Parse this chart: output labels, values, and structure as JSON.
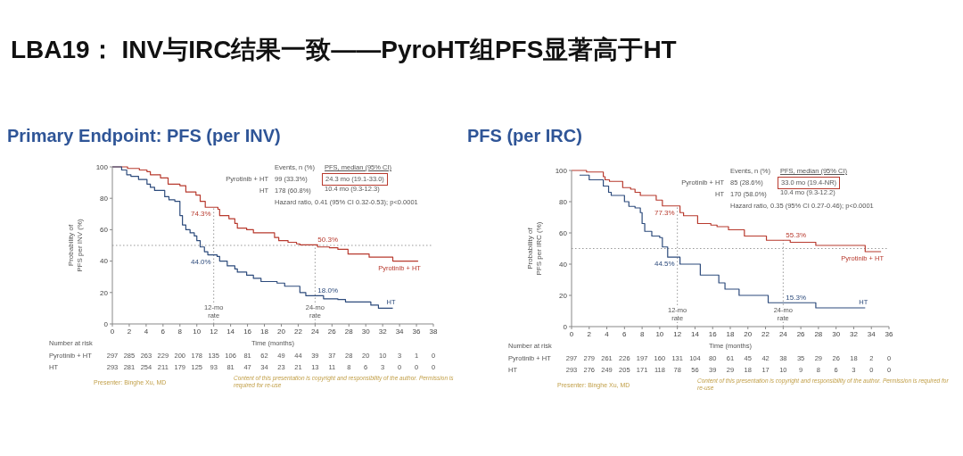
{
  "chart_data": [
    {
      "type": "other",
      "title": "LBA19： INV与IRC结果一致——PyroHT组PFS显著高于HT"
    },
    {
      "type": "step",
      "title": "Primary Endpoint: PFS (per INV)",
      "xlabel": "Time (months)",
      "ylabel": "Probability of\nPFS per INV (%)",
      "xlim": [
        0,
        38
      ],
      "xticks": [
        0,
        2,
        4,
        6,
        8,
        10,
        12,
        14,
        16,
        18,
        20,
        22,
        24,
        26,
        28,
        30,
        32,
        34,
        36,
        38
      ],
      "ylim": [
        0,
        100
      ],
      "yticks": [
        0,
        20,
        40,
        60,
        80,
        100
      ],
      "series": [
        {
          "name": "Pyrotinib + HT",
          "color": "#b83a2e",
          "x": [
            0,
            1.8,
            3.2,
            4.1,
            4.5,
            5.7,
            6.6,
            8.0,
            8.7,
            9.9,
            10.4,
            11.0,
            12.5,
            12.7,
            13.8,
            14.5,
            14.8,
            15.9,
            16.7,
            19.2,
            19.7,
            20.8,
            21.8,
            22.2,
            24.3,
            25.7,
            26.7,
            27.9,
            30.4,
            33.2,
            36.2
          ],
          "values": [
            100,
            99,
            98,
            97,
            95,
            93,
            89,
            88,
            84,
            82,
            78,
            74.3,
            73,
            69,
            67,
            64,
            61,
            60,
            58,
            55,
            53,
            52,
            51,
            50.3,
            49,
            48.5,
            47.5,
            44.5,
            42.5,
            40,
            40
          ]
        },
        {
          "name": "HT",
          "color": "#2d4b7c",
          "x": [
            0,
            1.1,
            1.7,
            2.2,
            3.1,
            4.1,
            4.5,
            5.0,
            6.2,
            6.7,
            7.4,
            8.0,
            8.3,
            8.7,
            9.2,
            9.7,
            10.0,
            10.4,
            10.9,
            11.3,
            12.4,
            12.7,
            13.6,
            14.5,
            14.8,
            15.9,
            16.7,
            17.6,
            19.5,
            20.4,
            22.2,
            22.9,
            25.0,
            26.7,
            27.6,
            30.6,
            31.5,
            33.2
          ],
          "values": [
            100,
            98,
            95,
            94,
            92,
            89,
            87,
            85,
            81,
            79,
            78,
            69,
            63,
            60,
            58,
            56,
            53,
            49,
            46,
            44.0,
            43,
            40,
            37,
            35,
            33,
            31,
            29,
            27,
            26,
            24,
            20,
            18.0,
            16,
            15.5,
            14,
            12,
            10,
            10
          ]
        }
      ],
      "ref_lines": [
        {
          "axis": "y",
          "value": 50,
          "line_style": "dotted",
          "color": "#999999"
        },
        {
          "axis": "x",
          "value": 12,
          "label": "12-mo\nrate",
          "line_style": "dotted",
          "color": "#999999"
        },
        {
          "axis": "x",
          "value": 24,
          "label": "24-mo\nrate",
          "line_style": "dotted",
          "color": "#999999"
        }
      ],
      "annotations": [
        "Events, n (%)",
        "PFS, median (95% CI)",
        "99 (33.3%)",
        "24.3 mo (19.1-33.0)",
        "178 (60.8%)",
        "10.4 mo (9.3-12.3)",
        "Hazard ratio, 0.41 (95% CI 0.32-0.53); p<0.0001",
        "74.3%",
        "44.0%",
        "50.3%",
        "18.0%",
        "Number at risk",
        "297 285 263 229 200 178 135 106 81 62 49 44 39 37 28 20 10 3 1 0",
        "293 281 254 211 179 125 93 81 47 34 23 21 13 11 8 6 3 0 0 0",
        "Presenter: Binghe Xu, MD",
        "Content of this presentation is copyright and responsibility of the author. Permission is required for re-use"
      ]
    },
    {
      "type": "step",
      "title": "PFS (per IRC)",
      "xlabel": "Time (months)",
      "ylabel": "Probability of\nPFS per IRC (%)",
      "xlim": [
        0,
        36
      ],
      "xticks": [
        0,
        2,
        4,
        6,
        8,
        10,
        12,
        14,
        16,
        18,
        20,
        22,
        24,
        26,
        28,
        30,
        32,
        34,
        36
      ],
      "ylim": [
        0,
        100
      ],
      "yticks": [
        0,
        20,
        40,
        60,
        80,
        100
      ],
      "series": [
        {
          "name": "Pyrotinib + HT",
          "color": "#b83a2e",
          "x": [
            0,
            1.7,
            3.6,
            3.8,
            4.3,
            5.8,
            6.7,
            7.2,
            7.8,
            9.6,
            10.3,
            12.3,
            12.7,
            14.3,
            15.8,
            16.5,
            17.8,
            19.6,
            22.1,
            24.8,
            27.7,
            33.3,
            35.1
          ],
          "values": [
            100,
            99,
            96,
            94,
            93,
            89,
            88,
            86,
            84,
            81,
            77.3,
            73,
            71,
            66,
            65,
            64,
            62,
            58,
            55.3,
            54,
            52,
            48,
            48
          ]
        },
        {
          "name": "HT",
          "color": "#2d4b7c",
          "x": [
            0.9,
            2.0,
            3.6,
            4.2,
            4.5,
            6.0,
            6.5,
            7.2,
            7.8,
            8.0,
            8.3,
            9.1,
            10.0,
            10.3,
            10.9,
            12.3,
            14.6,
            16.7,
            17.4,
            19.0,
            22.3,
            27.7,
            33.3
          ],
          "values": [
            97,
            94,
            90,
            86,
            84,
            80,
            77,
            76,
            73,
            66,
            61,
            58,
            57,
            51,
            44.5,
            40,
            33,
            28,
            24,
            20,
            15.3,
            12,
            12
          ]
        }
      ],
      "ref_lines": [
        {
          "axis": "y",
          "value": 50,
          "line_style": "dotted",
          "color": "#999999"
        },
        {
          "axis": "x",
          "value": 12,
          "label": "12-mo\nrate",
          "line_style": "dotted",
          "color": "#999999"
        },
        {
          "axis": "x",
          "value": 24,
          "label": "24-mo\nrate",
          "line_style": "dotted",
          "color": "#999999"
        }
      ],
      "annotations": [
        "Events, n (%)",
        "PFS, median (95% CI)",
        "85 (28.6%)",
        "33.0 mo (19.4-NR)",
        "170 (58.0%)",
        "10.4 mo (9.3-12.2)",
        "Hazard ratio, 0.35 (95% CI 0.27-0.46); p<0.0001",
        "77.3%",
        "44.5%",
        "55.3%",
        "15.3%",
        "Number at risk",
        "297 279 261 226 197 160 131 104 80 61 45 42 38 35 29 26 18 2 0",
        "293 276 249 205 171 118 78 56 39 29 18 17 10 9 8 6 3 0 0",
        "Presenter: Binghe Xu, MD",
        "Content of this presentation is copyright and responsibility of the author. Permission is required for re-use"
      ]
    }
  ]
}
